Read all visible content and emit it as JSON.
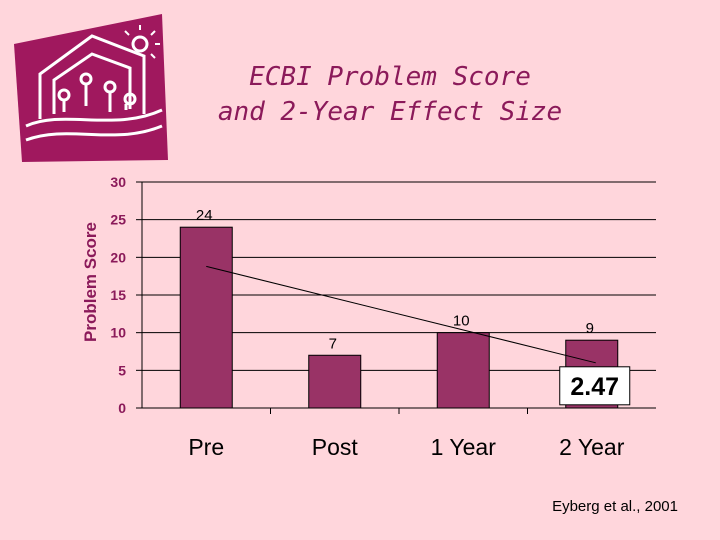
{
  "title": {
    "line1": "ECBI Problem Score",
    "line2": "and 2-Year Effect Size"
  },
  "citation": "Eyberg et al., 2001",
  "effect_size_label": "2.47",
  "logo": {
    "icon": "house-sun-logo-icon"
  },
  "colors": {
    "bar": "#993366",
    "title": "#8b1a5a",
    "background": "#ffd6dc",
    "logo": "#a0185e"
  },
  "chart_data": {
    "type": "bar",
    "title": "ECBI Problem Score and 2-Year Effect Size",
    "xlabel": "",
    "ylabel": "Problem Score",
    "categories": [
      "Pre",
      "Post",
      "1 Year",
      "2 Year"
    ],
    "values": [
      24,
      7,
      10,
      9
    ],
    "data_labels": [
      "24",
      "7",
      "10",
      "9"
    ],
    "ylim": [
      0,
      30
    ],
    "yticks": [
      0,
      5,
      10,
      15,
      20,
      25,
      30
    ],
    "grid": true,
    "trendline": {
      "from_category": "Pre",
      "from_value": 18.8,
      "to_category": "2 Year",
      "to_value": 6
    },
    "annotation": "2.47"
  }
}
